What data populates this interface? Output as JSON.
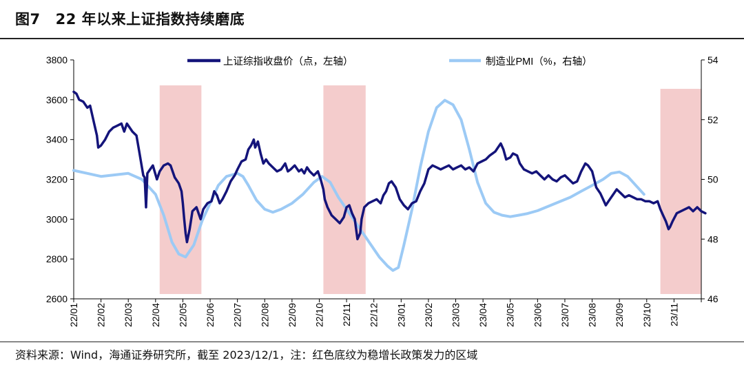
{
  "figure": {
    "number": "图7",
    "title": "22 年以来上证指数持续磨底",
    "source_note": "资料来源：Wind，海通证券研究所，截至 2023/12/1，注：红色底纹为稳增长政策发力的区域"
  },
  "colors": {
    "shanghai": "#14147a",
    "pmi": "#9ccaf5",
    "policy_shade": "#f4cccc",
    "axis": "#000000"
  },
  "chart_data": {
    "type": "line",
    "x_labels": [
      "22/01",
      "22/02",
      "22/03",
      "22/04",
      "22/05",
      "22/06",
      "22/07",
      "22/08",
      "22/09",
      "22/10",
      "22/11",
      "22/12",
      "23/01",
      "23/02",
      "23/03",
      "23/04",
      "23/05",
      "23/06",
      "23/07",
      "23/08",
      "23/09",
      "23/10",
      "23/11"
    ],
    "x_range": [
      0,
      23
    ],
    "y_left": {
      "range": [
        2600,
        3800
      ],
      "ticks": [
        "2600",
        "2800",
        "3000",
        "3200",
        "3400",
        "3600",
        "3800"
      ]
    },
    "y_right": {
      "range": [
        46,
        54
      ],
      "ticks": [
        "46",
        "48",
        "50",
        "52",
        "54"
      ]
    },
    "shaded_regions": [
      [
        3.15,
        4.68
      ],
      [
        9.15,
        10.7
      ],
      [
        21.5,
        23.0
      ]
    ],
    "series": [
      {
        "name": "上证综指收盘价（点，左轴）",
        "axis": "left",
        "style": "thick",
        "points": [
          [
            0,
            3640
          ],
          [
            0.1,
            3630
          ],
          [
            0.2,
            3600
          ],
          [
            0.35,
            3590
          ],
          [
            0.5,
            3560
          ],
          [
            0.6,
            3570
          ],
          [
            0.75,
            3480
          ],
          [
            0.85,
            3420
          ],
          [
            0.9,
            3360
          ],
          [
            1.0,
            3370
          ],
          [
            1.15,
            3400
          ],
          [
            1.3,
            3440
          ],
          [
            1.45,
            3460
          ],
          [
            1.6,
            3470
          ],
          [
            1.75,
            3480
          ],
          [
            1.85,
            3440
          ],
          [
            1.95,
            3480
          ],
          [
            2.05,
            3460
          ],
          [
            2.15,
            3440
          ],
          [
            2.3,
            3420
          ],
          [
            2.4,
            3340
          ],
          [
            2.5,
            3260
          ],
          [
            2.55,
            3220
          ],
          [
            2.6,
            3210
          ],
          [
            2.65,
            3060
          ],
          [
            2.7,
            3230
          ],
          [
            2.8,
            3250
          ],
          [
            2.9,
            3270
          ],
          [
            3.05,
            3200
          ],
          [
            3.15,
            3240
          ],
          [
            3.3,
            3270
          ],
          [
            3.45,
            3280
          ],
          [
            3.55,
            3270
          ],
          [
            3.7,
            3210
          ],
          [
            3.85,
            3180
          ],
          [
            3.95,
            3140
          ],
          [
            4.0,
            3080
          ],
          [
            4.05,
            3000
          ],
          [
            4.1,
            2930
          ],
          [
            4.15,
            2885
          ],
          [
            4.25,
            2950
          ],
          [
            4.35,
            3040
          ],
          [
            4.5,
            3060
          ],
          [
            4.6,
            3020
          ],
          [
            4.65,
            3000
          ],
          [
            4.75,
            3050
          ],
          [
            4.9,
            3080
          ],
          [
            5.05,
            3090
          ],
          [
            5.15,
            3140
          ],
          [
            5.25,
            3120
          ],
          [
            5.35,
            3080
          ],
          [
            5.45,
            3100
          ],
          [
            5.6,
            3140
          ],
          [
            5.75,
            3190
          ],
          [
            5.9,
            3220
          ],
          [
            6.0,
            3250
          ],
          [
            6.15,
            3290
          ],
          [
            6.3,
            3300
          ],
          [
            6.4,
            3350
          ],
          [
            6.5,
            3370
          ],
          [
            6.6,
            3400
          ],
          [
            6.65,
            3360
          ],
          [
            6.75,
            3390
          ],
          [
            6.85,
            3330
          ],
          [
            6.95,
            3280
          ],
          [
            7.05,
            3300
          ],
          [
            7.15,
            3280
          ],
          [
            7.3,
            3260
          ],
          [
            7.45,
            3240
          ],
          [
            7.6,
            3250
          ],
          [
            7.75,
            3280
          ],
          [
            7.85,
            3240
          ],
          [
            7.95,
            3250
          ],
          [
            8.1,
            3270
          ],
          [
            8.25,
            3240
          ],
          [
            8.35,
            3250
          ],
          [
            8.45,
            3230
          ],
          [
            8.55,
            3260
          ],
          [
            8.65,
            3240
          ],
          [
            8.8,
            3220
          ],
          [
            8.95,
            3240
          ],
          [
            9.05,
            3200
          ],
          [
            9.15,
            3150
          ],
          [
            9.2,
            3100
          ],
          [
            9.3,
            3060
          ],
          [
            9.45,
            3020
          ],
          [
            9.6,
            3000
          ],
          [
            9.75,
            2980
          ],
          [
            9.9,
            3010
          ],
          [
            10.0,
            3060
          ],
          [
            10.1,
            3070
          ],
          [
            10.2,
            3030
          ],
          [
            10.3,
            3000
          ],
          [
            10.4,
            2900
          ],
          [
            10.5,
            2930
          ],
          [
            10.55,
            3000
          ],
          [
            10.65,
            3060
          ],
          [
            10.8,
            3080
          ],
          [
            10.95,
            3090
          ],
          [
            11.1,
            3100
          ],
          [
            11.25,
            3080
          ],
          [
            11.35,
            3120
          ],
          [
            11.45,
            3140
          ],
          [
            11.55,
            3180
          ],
          [
            11.65,
            3190
          ],
          [
            11.8,
            3160
          ],
          [
            11.95,
            3100
          ],
          [
            12.1,
            3070
          ],
          [
            12.25,
            3050
          ],
          [
            12.4,
            3080
          ],
          [
            12.55,
            3090
          ],
          [
            12.7,
            3140
          ],
          [
            12.85,
            3180
          ],
          [
            13.0,
            3250
          ],
          [
            13.15,
            3270
          ],
          [
            13.3,
            3260
          ],
          [
            13.45,
            3250
          ],
          [
            13.6,
            3260
          ],
          [
            13.75,
            3270
          ],
          [
            13.9,
            3250
          ],
          [
            14.05,
            3260
          ],
          [
            14.2,
            3270
          ],
          [
            14.35,
            3250
          ],
          [
            14.5,
            3260
          ],
          [
            14.65,
            3240
          ],
          [
            14.8,
            3280
          ],
          [
            14.95,
            3290
          ],
          [
            15.1,
            3300
          ],
          [
            15.25,
            3320
          ],
          [
            15.35,
            3330
          ],
          [
            15.45,
            3340
          ],
          [
            15.55,
            3360
          ],
          [
            15.65,
            3380
          ],
          [
            15.75,
            3350
          ],
          [
            15.85,
            3300
          ],
          [
            16.0,
            3310
          ],
          [
            16.1,
            3330
          ],
          [
            16.25,
            3320
          ],
          [
            16.35,
            3280
          ],
          [
            16.5,
            3250
          ],
          [
            16.65,
            3240
          ],
          [
            16.8,
            3230
          ],
          [
            16.95,
            3240
          ],
          [
            17.1,
            3220
          ],
          [
            17.25,
            3200
          ],
          [
            17.4,
            3220
          ],
          [
            17.55,
            3200
          ],
          [
            17.7,
            3190
          ],
          [
            17.85,
            3210
          ],
          [
            18.0,
            3220
          ],
          [
            18.15,
            3200
          ],
          [
            18.3,
            3180
          ],
          [
            18.45,
            3190
          ],
          [
            18.6,
            3240
          ],
          [
            18.75,
            3280
          ],
          [
            18.85,
            3270
          ],
          [
            19.0,
            3240
          ],
          [
            19.15,
            3160
          ],
          [
            19.3,
            3130
          ],
          [
            19.4,
            3100
          ],
          [
            19.5,
            3070
          ],
          [
            19.6,
            3090
          ],
          [
            19.75,
            3120
          ],
          [
            19.9,
            3150
          ],
          [
            20.05,
            3130
          ],
          [
            20.2,
            3110
          ],
          [
            20.35,
            3120
          ],
          [
            20.5,
            3110
          ],
          [
            20.65,
            3100
          ],
          [
            20.8,
            3100
          ],
          [
            20.95,
            3090
          ],
          [
            21.1,
            3090
          ],
          [
            21.25,
            3080
          ],
          [
            21.4,
            3090
          ],
          [
            21.5,
            3050
          ],
          [
            21.6,
            3020
          ],
          [
            21.7,
            2990
          ],
          [
            21.8,
            2950
          ],
          [
            21.85,
            2960
          ],
          [
            21.95,
            2990
          ],
          [
            22.1,
            3030
          ],
          [
            22.25,
            3040
          ],
          [
            22.4,
            3050
          ],
          [
            22.55,
            3060
          ],
          [
            22.7,
            3040
          ],
          [
            22.85,
            3060
          ],
          [
            23.0,
            3040
          ],
          [
            23.15,
            3030
          ]
        ]
      },
      {
        "name": "制造业PMI（%，右轴）",
        "axis": "right",
        "style": "thin",
        "points": [
          [
            0,
            50.3
          ],
          [
            0.5,
            50.2
          ],
          [
            1.0,
            50.1
          ],
          [
            1.5,
            50.15
          ],
          [
            2.0,
            50.2
          ],
          [
            2.5,
            50.0
          ],
          [
            3.0,
            49.5
          ],
          [
            3.3,
            48.8
          ],
          [
            3.6,
            47.9
          ],
          [
            3.85,
            47.5
          ],
          [
            4.1,
            47.4
          ],
          [
            4.4,
            47.8
          ],
          [
            4.7,
            48.6
          ],
          [
            5.0,
            49.2
          ],
          [
            5.3,
            49.8
          ],
          [
            5.6,
            50.1
          ],
          [
            6.0,
            50.2
          ],
          [
            6.2,
            50.1
          ],
          [
            6.4,
            49.8
          ],
          [
            6.7,
            49.3
          ],
          [
            7.0,
            49.0
          ],
          [
            7.3,
            48.9
          ],
          [
            7.6,
            49.0
          ],
          [
            8.0,
            49.2
          ],
          [
            8.4,
            49.5
          ],
          [
            8.8,
            49.9
          ],
          [
            9.1,
            50.1
          ],
          [
            9.4,
            49.9
          ],
          [
            9.7,
            49.4
          ],
          [
            10.0,
            49.0
          ],
          [
            10.3,
            48.6
          ],
          [
            10.6,
            48.2
          ],
          [
            10.9,
            47.8
          ],
          [
            11.2,
            47.4
          ],
          [
            11.5,
            47.1
          ],
          [
            11.7,
            46.95
          ],
          [
            11.9,
            47.05
          ],
          [
            12.1,
            47.8
          ],
          [
            12.4,
            49.0
          ],
          [
            12.7,
            50.4
          ],
          [
            13.0,
            51.6
          ],
          [
            13.3,
            52.4
          ],
          [
            13.6,
            52.65
          ],
          [
            13.9,
            52.5
          ],
          [
            14.2,
            52.0
          ],
          [
            14.5,
            51.0
          ],
          [
            14.8,
            49.9
          ],
          [
            15.1,
            49.2
          ],
          [
            15.4,
            48.9
          ],
          [
            15.7,
            48.8
          ],
          [
            16.0,
            48.75
          ],
          [
            16.3,
            48.8
          ],
          [
            16.6,
            48.85
          ],
          [
            17.0,
            48.95
          ],
          [
            17.4,
            49.1
          ],
          [
            17.8,
            49.25
          ],
          [
            18.2,
            49.4
          ],
          [
            18.6,
            49.6
          ],
          [
            19.0,
            49.8
          ],
          [
            19.4,
            50.0
          ],
          [
            19.7,
            50.2
          ],
          [
            20.0,
            50.25
          ],
          [
            20.3,
            50.1
          ],
          [
            20.6,
            49.8
          ],
          [
            20.9,
            49.5
          ]
        ]
      }
    ]
  },
  "legend": {
    "shanghai_label": "上证综指收盘价（点，左轴）",
    "pmi_label": "制造业PMI（%，右轴）"
  }
}
